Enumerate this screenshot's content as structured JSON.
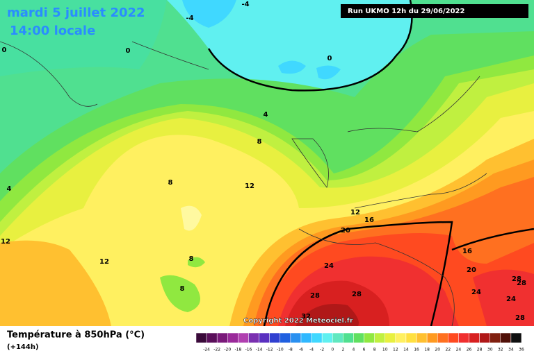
{
  "header": {
    "date": "mardi 5 juillet 2022",
    "time": "14:00 locale",
    "run": "Run UKMO 12h du 29/06/2022"
  },
  "copyright": "Copyright 2022 Meteociel.fr",
  "legend": {
    "title": "Température à 850hPa (°C)",
    "subtitle": "(+144h)",
    "scale": [
      -24,
      -22,
      -20,
      -18,
      -16,
      -14,
      -12,
      -10,
      -8,
      -6,
      -4,
      -2,
      0,
      2,
      4,
      6,
      8,
      10,
      12,
      14,
      16,
      18,
      20,
      22,
      24,
      26,
      28,
      30,
      32,
      34,
      36
    ],
    "colors": [
      "#3a0a3a",
      "#5a0f5a",
      "#7a1a7a",
      "#9a2a9a",
      "#b040b0",
      "#7a30b0",
      "#5a30c0",
      "#3040d0",
      "#2060e0",
      "#2a90f0",
      "#30b8ff",
      "#40d8ff",
      "#60f0f0",
      "#60e8c0",
      "#50e090",
      "#60e060",
      "#90e840",
      "#c0f040",
      "#e8f040",
      "#fff060",
      "#ffe040",
      "#ffc030",
      "#ff9a20",
      "#ff7020",
      "#ff4a20",
      "#f03030",
      "#d82020",
      "#b01818",
      "#802010",
      "#501008",
      "#101010"
    ]
  },
  "contour_labels": [
    "-4",
    "-4",
    "0",
    "0",
    "0",
    "4",
    "4",
    "8",
    "8",
    "12",
    "12",
    "12",
    "12",
    "16",
    "20",
    "16",
    "20",
    "8",
    "8",
    "24",
    "24",
    "24",
    "28",
    "28",
    "28",
    "28",
    "28",
    "32"
  ]
}
